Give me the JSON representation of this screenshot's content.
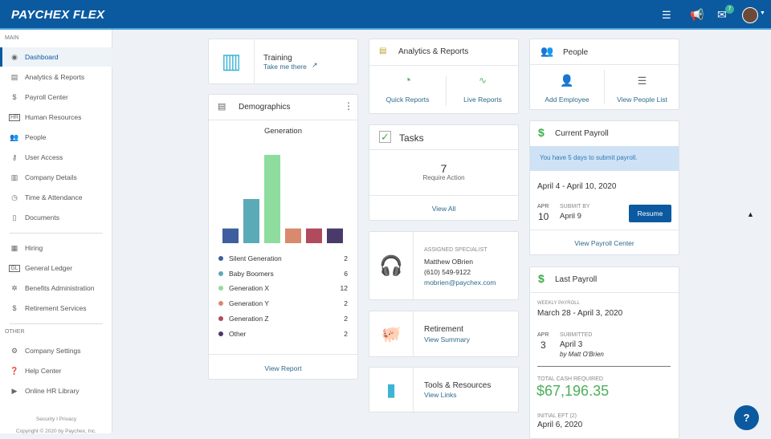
{
  "header": {
    "logo": "PAYCHEX FLEX",
    "notification_count": "7",
    "brand_color": "#0b5aa0",
    "icons": [
      "people-list-icon",
      "megaphone-icon",
      "mail-icon",
      "avatar"
    ]
  },
  "sidebar": {
    "main_label": "MAIN",
    "other_label": "OTHER",
    "items": [
      {
        "label": "Dashboard",
        "icon": "dashboard-icon"
      },
      {
        "label": "Analytics & Reports",
        "icon": "reports-icon"
      },
      {
        "label": "Payroll Center",
        "icon": "dollar-icon"
      },
      {
        "label": "Human Resources",
        "icon": "hr-icon"
      },
      {
        "label": "People",
        "icon": "people-icon"
      },
      {
        "label": "User Access",
        "icon": "user-access-icon"
      },
      {
        "label": "Company Details",
        "icon": "building-icon"
      },
      {
        "label": "Time & Attendance",
        "icon": "clock-icon"
      },
      {
        "label": "Documents",
        "icon": "document-icon"
      }
    ],
    "items2": [
      {
        "label": "Hiring",
        "icon": "hiring-icon"
      },
      {
        "label": "General Ledger",
        "icon": "gl-icon"
      },
      {
        "label": "Benefits Administration",
        "icon": "benefits-icon"
      },
      {
        "label": "Retirement Services",
        "icon": "piggy-bank-icon"
      }
    ],
    "other": [
      {
        "label": "Company Settings",
        "icon": "gear-icon"
      },
      {
        "label": "Help Center",
        "icon": "help-icon"
      },
      {
        "label": "Online HR Library",
        "icon": "video-icon"
      }
    ],
    "footer_links": "Security I Privacy",
    "copyright": "Copyright © 2020 by Paychex, Inc."
  },
  "training": {
    "title": "Training",
    "link": "Take me there"
  },
  "demographics": {
    "title": "Demographics",
    "view_report": "View Report",
    "chart_data": {
      "type": "bar",
      "title": "Generation",
      "categories": [
        "Silent Generation",
        "Baby Boomers",
        "Generation X",
        "Generation Y",
        "Generation Z",
        "Other"
      ],
      "values": [
        2,
        6,
        12,
        2,
        2,
        2
      ],
      "colors": [
        "#3e5ea0",
        "#5baab8",
        "#8fdc9f",
        "#d98a6e",
        "#b04a5c",
        "#4a3a6a"
      ]
    }
  },
  "analytics": {
    "title": "Analytics & Reports",
    "quick": "Quick Reports",
    "live": "Live Reports"
  },
  "tasks": {
    "title": "Tasks",
    "count": "7",
    "subtitle": "Require Action",
    "view_all": "View All"
  },
  "specialist": {
    "label": "ASSIGNED SPECIALIST",
    "name": "Matthew OBrien",
    "phone": "(610) 549-9122",
    "email": "mobrien@paychex.com"
  },
  "retirement": {
    "title": "Retirement",
    "link": "View Summary"
  },
  "tools": {
    "title": "Tools & Resources",
    "link": "View Links"
  },
  "people": {
    "title": "People",
    "add": "Add Employee",
    "list": "View People List"
  },
  "current_payroll": {
    "title": "Current Payroll",
    "alert": "You have 5 days to submit payroll.",
    "period": "April 4 - April 10, 2020",
    "month": "APR",
    "day": "10",
    "submit_label": "SUBMIT BY",
    "submit_date": "April 9",
    "resume": "Resume",
    "view": "View Payroll Center"
  },
  "last_payroll": {
    "title": "Last Payroll",
    "type_label": "WEEKLY PAYROLL",
    "period": "March 28 - April 3, 2020",
    "month": "APR",
    "day": "3",
    "submitted_label": "SUBMITTED",
    "submitted_date": "April 3",
    "by": "by  Matt O'Brien",
    "total_label": "TOTAL CASH REQUIRED",
    "total": "$67,196.35",
    "eft_label": "INITIAL EFT (2)",
    "eft_date": "April 6, 2020"
  },
  "help_button": "?"
}
